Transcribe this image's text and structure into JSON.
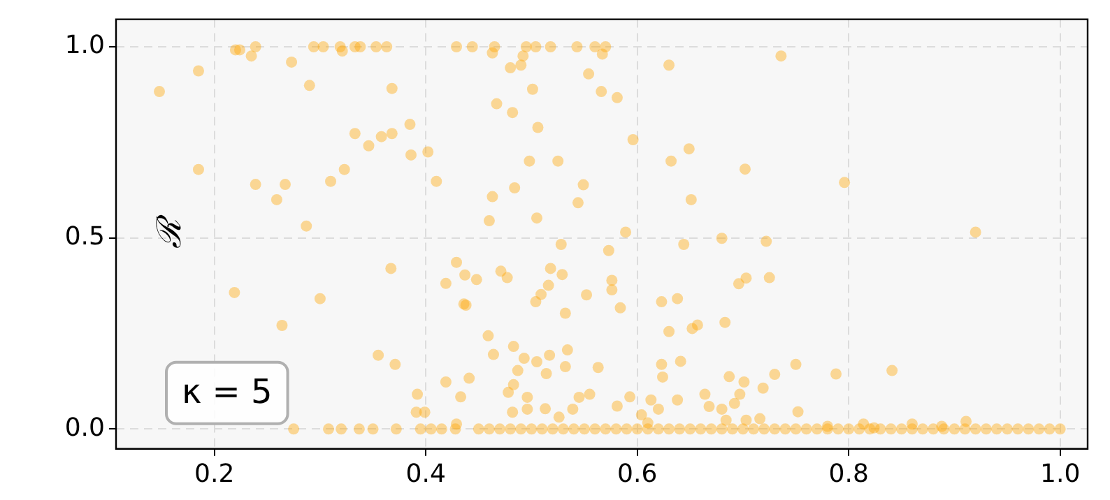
{
  "chart_data": {
    "type": "scatter",
    "ylabel": "ℛ",
    "annotations": [
      "κ = 5"
    ],
    "xlim": [
      0.107,
      1.026
    ],
    "ylim": [
      -0.052,
      1.072
    ],
    "xticks": [
      0.2,
      0.4,
      0.6,
      0.8,
      {
        "value": 1.0,
        "label": "1.0"
      }
    ],
    "yticks": [
      {
        "value": 0.0,
        "label": "0.0"
      },
      0.5,
      {
        "value": 1.0,
        "label": "1.0"
      }
    ],
    "grid": true,
    "marker": "circle",
    "series": [
      {
        "color": "#ffa500",
        "x": [
          0.148,
          0.185,
          0.22,
          0.224,
          0.235,
          0.239,
          0.273,
          0.29,
          0.294,
          0.303,
          0.319,
          0.321,
          0.333,
          0.338,
          0.353,
          0.363,
          0.368,
          0.385,
          0.333,
          0.346,
          0.358,
          0.368,
          0.386,
          0.402,
          0.41,
          0.185,
          0.239,
          0.267,
          0.259,
          0.31,
          0.323,
          0.287,
          0.429,
          0.444,
          0.465,
          0.463,
          0.495,
          0.504,
          0.492,
          0.49,
          0.48,
          0.518,
          0.543,
          0.56,
          0.57,
          0.567,
          0.554,
          0.501,
          0.566,
          0.581,
          0.467,
          0.482,
          0.506,
          0.596,
          0.63,
          0.736,
          0.649,
          0.632,
          0.702,
          0.498,
          0.525,
          0.484,
          0.549,
          0.463,
          0.544,
          0.651,
          0.46,
          0.505,
          0.589,
          0.796,
          0.92,
          0.219,
          0.3,
          0.367,
          0.264,
          0.355,
          0.371,
          0.419,
          0.429,
          0.419,
          0.436,
          0.392,
          0.391,
          0.399,
          0.433,
          0.429,
          0.528,
          0.573,
          0.644,
          0.68,
          0.722,
          0.437,
          0.448,
          0.471,
          0.477,
          0.518,
          0.529,
          0.516,
          0.509,
          0.504,
          0.552,
          0.576,
          0.576,
          0.584,
          0.532,
          0.438,
          0.459,
          0.464,
          0.483,
          0.493,
          0.505,
          0.517,
          0.534,
          0.532,
          0.514,
          0.487,
          0.563,
          0.441,
          0.483,
          0.478,
          0.496,
          0.496,
          0.482,
          0.513,
          0.539,
          0.545,
          0.555,
          0.581,
          0.593,
          0.526,
          0.623,
          0.638,
          0.63,
          0.652,
          0.657,
          0.683,
          0.696,
          0.703,
          0.725,
          0.623,
          0.624,
          0.641,
          0.687,
          0.701,
          0.73,
          0.75,
          0.719,
          0.697,
          0.692,
          0.664,
          0.668,
          0.68,
          0.638,
          0.613,
          0.62,
          0.604,
          0.752,
          0.716,
          0.684,
          0.703,
          0.61,
          0.788,
          0.841,
          0.814,
          0.86,
          0.888,
          0.911,
          0.78,
          0.824,
          0.275,
          0.308,
          0.32,
          0.337,
          0.35,
          0.372,
          0.395,
          0.405,
          0.415,
          0.428,
          0.45,
          0.46,
          0.47,
          0.48,
          0.49,
          0.5,
          0.51,
          0.52,
          0.53,
          0.54,
          0.55,
          0.56,
          0.57,
          0.58,
          0.59,
          0.6,
          0.61,
          0.62,
          0.63,
          0.64,
          0.65,
          0.66,
          0.67,
          0.68,
          0.69,
          0.7,
          0.71,
          0.72,
          0.73,
          0.74,
          0.75,
          0.76,
          0.77,
          0.78,
          0.79,
          0.8,
          0.81,
          0.82,
          0.83,
          0.84,
          0.85,
          0.86,
          0.87,
          0.88,
          0.89,
          0.9,
          0.91,
          0.92,
          0.93,
          0.94,
          0.95,
          0.96,
          0.97,
          0.98,
          0.99,
          1.0
        ],
        "values": [
          0.883,
          0.937,
          0.992,
          0.992,
          0.976,
          1.0,
          0.96,
          0.899,
          1.0,
          1.0,
          1.0,
          0.989,
          1.0,
          1.0,
          1.0,
          1.0,
          0.891,
          0.797,
          0.773,
          0.741,
          0.765,
          0.773,
          0.717,
          0.725,
          0.648,
          0.679,
          0.64,
          0.64,
          0.6,
          0.648,
          0.679,
          0.531,
          1.0,
          1.0,
          1.0,
          0.984,
          1.0,
          1.0,
          0.976,
          0.952,
          0.945,
          1.0,
          1.0,
          1.0,
          1.0,
          0.981,
          0.929,
          0.889,
          0.883,
          0.867,
          0.851,
          0.828,
          0.789,
          0.757,
          0.952,
          0.976,
          0.733,
          0.701,
          0.68,
          0.701,
          0.701,
          0.631,
          0.639,
          0.608,
          0.592,
          0.6,
          0.545,
          0.552,
          0.515,
          0.645,
          0.515,
          0.357,
          0.341,
          0.42,
          0.271,
          0.193,
          0.169,
          0.123,
          0.436,
          0.381,
          0.327,
          0.091,
          0.044,
          0.044,
          0.084,
          0.013,
          0.483,
          0.467,
          0.483,
          0.499,
          0.491,
          0.403,
          0.391,
          0.413,
          0.396,
          0.42,
          0.404,
          0.376,
          0.352,
          0.333,
          0.351,
          0.389,
          0.364,
          0.317,
          0.303,
          0.324,
          0.244,
          0.195,
          0.216,
          0.185,
          0.176,
          0.193,
          0.207,
          0.163,
          0.145,
          0.153,
          0.161,
          0.133,
          0.116,
          0.096,
          0.083,
          0.052,
          0.044,
          0.053,
          0.052,
          0.083,
          0.091,
          0.06,
          0.084,
          0.031,
          0.333,
          0.341,
          0.255,
          0.263,
          0.272,
          0.279,
          0.38,
          0.395,
          0.396,
          0.169,
          0.136,
          0.177,
          0.137,
          0.123,
          0.143,
          0.169,
          0.107,
          0.091,
          0.067,
          0.091,
          0.059,
          0.052,
          0.076,
          0.076,
          0.052,
          0.037,
          0.045,
          0.027,
          0.023,
          0.023,
          0.016,
          0.144,
          0.153,
          0.013,
          0.013,
          0.007,
          0.02,
          0.007,
          0.003,
          0,
          0,
          0,
          0,
          0,
          0,
          0,
          0,
          0,
          0,
          0,
          0,
          0,
          0,
          0,
          0,
          0,
          0,
          0,
          0,
          0,
          0,
          0,
          0,
          0,
          0,
          0,
          0,
          0,
          0,
          0,
          0,
          0,
          0,
          0,
          0,
          0,
          0,
          0,
          0,
          0,
          0,
          0,
          0,
          0,
          0,
          0,
          0,
          0,
          0,
          0,
          0,
          0,
          0,
          0,
          0,
          0,
          0,
          0,
          0,
          0,
          0,
          0,
          0,
          0,
          0
        ]
      }
    ]
  }
}
